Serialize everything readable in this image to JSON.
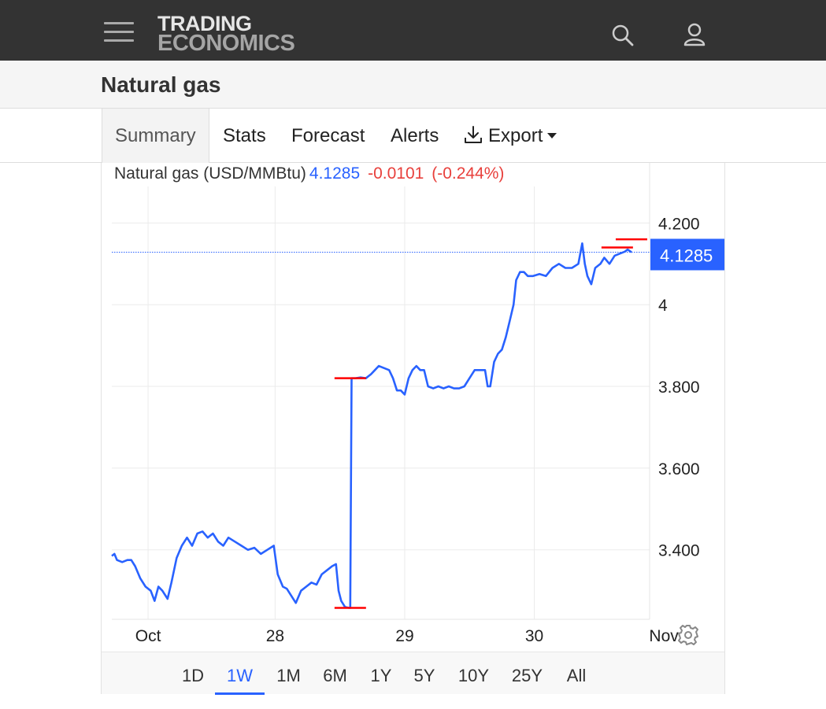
{
  "header": {
    "logo_line1": "TRADING",
    "logo_line2": "ECONOMICS",
    "menu_icon": "hamburger-menu-icon",
    "search_icon": "search-icon",
    "user_icon": "user-icon"
  },
  "page": {
    "title": "Natural gas"
  },
  "tabs": [
    {
      "label": "Summary",
      "active": true
    },
    {
      "label": "Stats"
    },
    {
      "label": "Forecast"
    },
    {
      "label": "Alerts"
    },
    {
      "label": "Export",
      "icon": "download-icon",
      "dropdown": true
    }
  ],
  "quote": {
    "name": "Natural gas (USD/MMBtu)",
    "price": "4.1285",
    "change": "-0.0101",
    "change_pct": "(-0.244%)"
  },
  "colors": {
    "line": "#2962ff",
    "negative": "#e8403c",
    "marker": "#ff0000",
    "topbar": "#333333"
  },
  "chart_data": {
    "type": "line",
    "series": [
      {
        "name": "Natural gas (USD/MMBtu)",
        "values": [
          [
            0.0,
            3.385
          ],
          [
            0.02,
            3.39
          ],
          [
            0.04,
            3.375
          ],
          [
            0.08,
            3.37
          ],
          [
            0.12,
            3.375
          ],
          [
            0.15,
            3.375
          ],
          [
            0.18,
            3.36
          ],
          [
            0.22,
            3.33
          ],
          [
            0.26,
            3.31
          ],
          [
            0.3,
            3.3
          ],
          [
            0.33,
            3.275
          ],
          [
            0.36,
            3.31
          ],
          [
            0.39,
            3.3
          ],
          [
            0.43,
            3.28
          ],
          [
            0.46,
            3.32
          ],
          [
            0.5,
            3.38
          ],
          [
            0.54,
            3.41
          ],
          [
            0.58,
            3.43
          ],
          [
            0.62,
            3.41
          ],
          [
            0.66,
            3.44
          ],
          [
            0.7,
            3.445
          ],
          [
            0.74,
            3.43
          ],
          [
            0.78,
            3.44
          ],
          [
            0.82,
            3.42
          ],
          [
            0.86,
            3.41
          ],
          [
            0.9,
            3.43
          ],
          [
            0.95,
            3.42
          ],
          [
            1.0,
            3.41
          ],
          [
            1.05,
            3.4
          ],
          [
            1.1,
            3.405
          ],
          [
            1.15,
            3.39
          ],
          [
            1.2,
            3.4
          ],
          [
            1.25,
            3.41
          ],
          [
            1.28,
            3.34
          ],
          [
            1.32,
            3.31
          ],
          [
            1.35,
            3.305
          ],
          [
            1.38,
            3.29
          ],
          [
            1.42,
            3.27
          ],
          [
            1.46,
            3.3
          ],
          [
            1.5,
            3.31
          ],
          [
            1.54,
            3.32
          ],
          [
            1.58,
            3.315
          ],
          [
            1.62,
            3.34
          ],
          [
            1.66,
            3.35
          ],
          [
            1.7,
            3.36
          ],
          [
            1.73,
            3.365
          ],
          [
            1.75,
            3.3
          ],
          [
            1.77,
            3.275
          ],
          [
            1.8,
            3.26
          ],
          [
            1.83,
            3.258
          ],
          [
            1.84,
            3.258
          ],
          [
            1.85,
            3.82
          ],
          [
            1.88,
            3.82
          ],
          [
            1.92,
            3.822
          ],
          [
            1.96,
            3.82
          ],
          [
            2.0,
            3.83
          ],
          [
            2.03,
            3.84
          ],
          [
            2.06,
            3.85
          ],
          [
            2.1,
            3.845
          ],
          [
            2.14,
            3.84
          ],
          [
            2.17,
            3.82
          ],
          [
            2.2,
            3.79
          ],
          [
            2.23,
            3.79
          ],
          [
            2.26,
            3.78
          ],
          [
            2.29,
            3.82
          ],
          [
            2.32,
            3.84
          ],
          [
            2.35,
            3.85
          ],
          [
            2.38,
            3.84
          ],
          [
            2.41,
            3.84
          ],
          [
            2.44,
            3.8
          ],
          [
            2.48,
            3.795
          ],
          [
            2.52,
            3.8
          ],
          [
            2.56,
            3.795
          ],
          [
            2.6,
            3.8
          ],
          [
            2.64,
            3.795
          ],
          [
            2.68,
            3.795
          ],
          [
            2.72,
            3.8
          ],
          [
            2.76,
            3.82
          ],
          [
            2.8,
            3.84
          ],
          [
            2.84,
            3.84
          ],
          [
            2.88,
            3.84
          ],
          [
            2.9,
            3.8
          ],
          [
            2.92,
            3.8
          ],
          [
            2.95,
            3.86
          ],
          [
            2.98,
            3.88
          ],
          [
            3.01,
            3.89
          ],
          [
            3.04,
            3.92
          ],
          [
            3.07,
            3.96
          ],
          [
            3.1,
            4.0
          ],
          [
            3.12,
            4.06
          ],
          [
            3.15,
            4.08
          ],
          [
            3.18,
            4.08
          ],
          [
            3.21,
            4.07
          ],
          [
            3.25,
            4.07
          ],
          [
            3.3,
            4.075
          ],
          [
            3.35,
            4.07
          ],
          [
            3.4,
            4.09
          ],
          [
            3.45,
            4.1
          ],
          [
            3.5,
            4.09
          ],
          [
            3.55,
            4.09
          ],
          [
            3.6,
            4.1
          ],
          [
            3.63,
            4.15
          ],
          [
            3.65,
            4.1
          ],
          [
            3.67,
            4.07
          ],
          [
            3.7,
            4.05
          ],
          [
            3.73,
            4.09
          ],
          [
            3.77,
            4.1
          ],
          [
            3.8,
            4.115
          ],
          [
            3.84,
            4.1
          ],
          [
            3.88,
            4.12
          ],
          [
            3.92,
            4.125
          ],
          [
            3.96,
            4.13
          ],
          [
            3.98,
            4.135
          ],
          [
            4.01,
            4.1285
          ]
        ]
      }
    ],
    "x_ticks": [
      {
        "label": "Oct",
        "x": 0.28
      },
      {
        "label": "28",
        "x": 1.26
      },
      {
        "label": "29",
        "x": 2.26
      },
      {
        "label": "30",
        "x": 3.26
      },
      {
        "label": "Nov",
        "x": 4.26
      }
    ],
    "y_ticks": [
      "4.200",
      "4",
      "3.800",
      "3.600",
      "3.400"
    ],
    "y_tick_values": [
      4.2,
      4.0,
      3.8,
      3.6,
      3.4
    ],
    "xlim": [
      0,
      4.15
    ],
    "ylim": [
      3.23,
      4.27
    ],
    "last_value": 4.1285,
    "last_value_label": "4.1285",
    "grid": true,
    "markers": [
      {
        "x": 1.84,
        "y": 3.82,
        "type": "high"
      },
      {
        "x": 1.84,
        "y": 3.258,
        "type": "low"
      },
      {
        "x": 3.9,
        "y": 4.14,
        "type": "high"
      },
      {
        "x": 4.01,
        "y": 4.16,
        "type": "high"
      }
    ]
  },
  "ranges": [
    {
      "label": "1D"
    },
    {
      "label": "1W",
      "active": true
    },
    {
      "label": "1M"
    },
    {
      "label": "6M"
    },
    {
      "label": "1Y"
    },
    {
      "label": "5Y"
    },
    {
      "label": "10Y"
    },
    {
      "label": "25Y"
    },
    {
      "label": "All"
    }
  ],
  "settings_icon": "gear-icon"
}
